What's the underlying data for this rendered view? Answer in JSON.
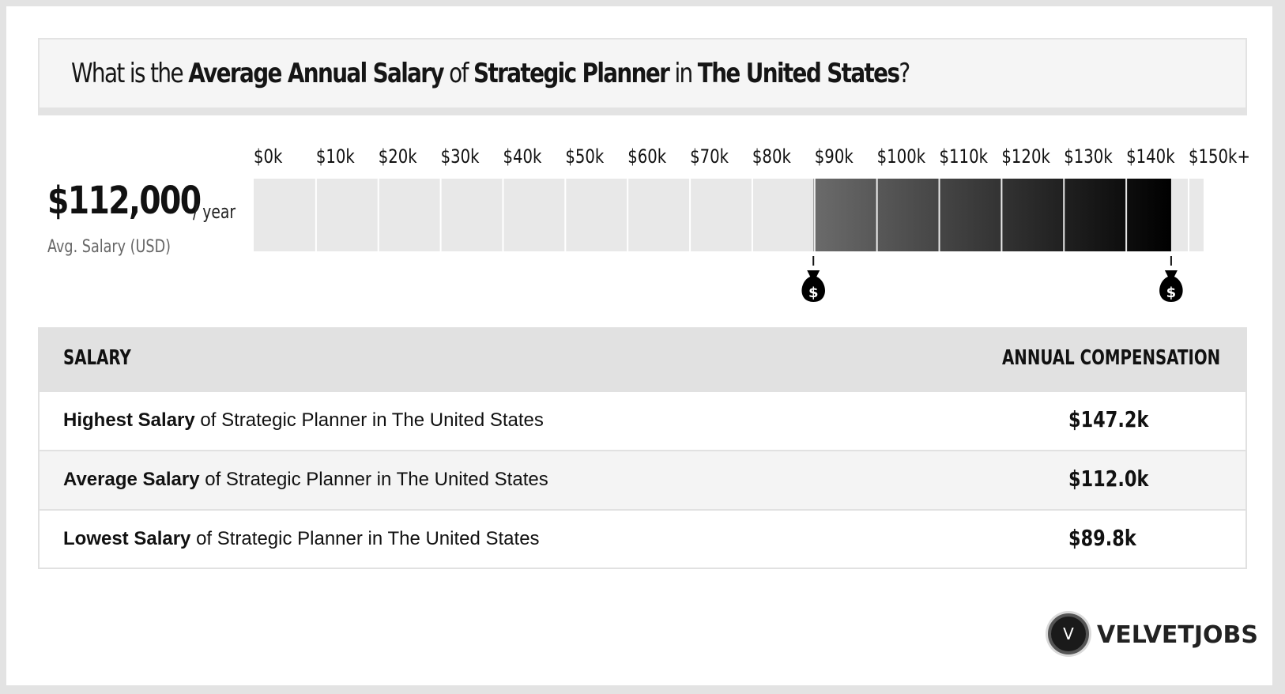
{
  "question": {
    "prefix": "What is the ",
    "metric": "Average Annual Salary",
    "of": " of ",
    "job": "Strategic Planner",
    "in": " in ",
    "location": "The United States",
    "suffix": "?"
  },
  "summary": {
    "value": "$112,000",
    "unit": "/ year",
    "label": "Avg. Salary (USD)"
  },
  "chart_data": {
    "type": "bar",
    "tick_labels": [
      "$0k",
      "$10k",
      "$20k",
      "$30k",
      "$40k",
      "$50k",
      "$60k",
      "$70k",
      "$80k",
      "$90k",
      "$100k",
      "$110k",
      "$120k",
      "$130k",
      "$140k",
      "$150k+"
    ],
    "x_range": [
      0,
      150000
    ],
    "range_low": 89800,
    "range_high": 147200,
    "average": 112000,
    "markers": [
      {
        "value": 89800,
        "icon": "money-bag-icon",
        "label": "$"
      },
      {
        "value": 147200,
        "icon": "money-bag-icon",
        "label": "$"
      }
    ]
  },
  "table": {
    "header_left": "SALARY",
    "header_right": "ANNUAL COMPENSATION",
    "rows": [
      {
        "bold": "Highest Salary",
        "rest": " of Strategic Planner in The United States",
        "value": "$147.2k"
      },
      {
        "bold": "Average Salary",
        "rest": " of Strategic Planner in The United States",
        "value": "$112.0k"
      },
      {
        "bold": "Lowest Salary",
        "rest": " of Strategic Planner in The United States",
        "value": "$89.8k"
      }
    ]
  },
  "brand": {
    "logo_letter": "V",
    "name": "VELVETJOBS"
  },
  "colors": {
    "background": "#e3e3e3",
    "bar_empty": "#e8e8e8",
    "range_dark": "#000000",
    "range_light": "#6b6b6b"
  }
}
